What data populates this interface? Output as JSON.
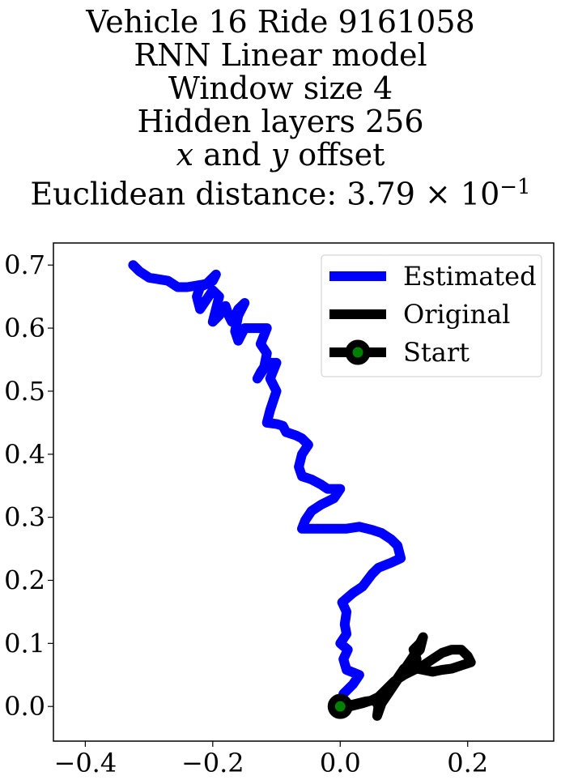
{
  "title": {
    "line1": "Vehicle 16 Ride 9161058",
    "line2": "RNN Linear model",
    "line3": "Window size 4",
    "line4": "Hidden layers 256",
    "line5_x": "x",
    "line5_and": " and ",
    "line5_y": "y",
    "line5_rest": " offset",
    "line6_prefix": "Euclidean distance: 3.79",
    "line6_times": " × 10",
    "line6_exp": "−1"
  },
  "chart_data": {
    "type": "line",
    "xlim": [
      -0.45,
      0.335
    ],
    "ylim": [
      -0.055,
      0.735
    ],
    "x_ticks": [
      {
        "value": -0.4,
        "label": "−0.4"
      },
      {
        "value": -0.2,
        "label": "−0.2"
      },
      {
        "value": 0.0,
        "label": "0.0"
      },
      {
        "value": 0.2,
        "label": "0.2"
      }
    ],
    "y_ticks": [
      {
        "value": 0.0,
        "label": "0.0"
      },
      {
        "value": 0.1,
        "label": "0.1"
      },
      {
        "value": 0.2,
        "label": "0.2"
      },
      {
        "value": 0.3,
        "label": "0.3"
      },
      {
        "value": 0.4,
        "label": "0.4"
      },
      {
        "value": 0.5,
        "label": "0.5"
      },
      {
        "value": 0.6,
        "label": "0.6"
      },
      {
        "value": 0.7,
        "label": "0.7"
      }
    ],
    "grid": false,
    "legend_position": "top-right",
    "series": [
      {
        "name": "Estimated",
        "color": "#0000ff",
        "points": [
          [
            0.0,
            0.0
          ],
          [
            0.005,
            0.02
          ],
          [
            0.02,
            0.035
          ],
          [
            0.03,
            0.05
          ],
          [
            0.01,
            0.058
          ],
          [
            0.005,
            0.075
          ],
          [
            0.012,
            0.09
          ],
          [
            0.0,
            0.1
          ],
          [
            0.01,
            0.115
          ],
          [
            0.007,
            0.13
          ],
          [
            0.01,
            0.15
          ],
          [
            0.003,
            0.165
          ],
          [
            0.02,
            0.18
          ],
          [
            0.035,
            0.19
          ],
          [
            0.05,
            0.21
          ],
          [
            0.06,
            0.22
          ],
          [
            0.08,
            0.228
          ],
          [
            0.095,
            0.235
          ],
          [
            0.09,
            0.255
          ],
          [
            0.08,
            0.265
          ],
          [
            0.065,
            0.275
          ],
          [
            0.05,
            0.28
          ],
          [
            0.03,
            0.285
          ],
          [
            0.01,
            0.282
          ],
          [
            -0.02,
            0.282
          ],
          [
            -0.06,
            0.282
          ],
          [
            -0.055,
            0.295
          ],
          [
            -0.045,
            0.31
          ],
          [
            -0.03,
            0.32
          ],
          [
            -0.01,
            0.33
          ],
          [
            0.0,
            0.345
          ],
          [
            -0.02,
            0.345
          ],
          [
            -0.03,
            0.352
          ],
          [
            -0.045,
            0.36
          ],
          [
            -0.06,
            0.365
          ],
          [
            -0.065,
            0.38
          ],
          [
            -0.06,
            0.4
          ],
          [
            -0.05,
            0.415
          ],
          [
            -0.06,
            0.425
          ],
          [
            -0.07,
            0.43
          ],
          [
            -0.085,
            0.435
          ],
          [
            -0.09,
            0.445
          ],
          [
            -0.1,
            0.448
          ],
          [
            -0.115,
            0.45
          ],
          [
            -0.11,
            0.47
          ],
          [
            -0.1,
            0.5
          ],
          [
            -0.11,
            0.52
          ],
          [
            -0.1,
            0.545
          ],
          [
            -0.115,
            0.545
          ],
          [
            -0.125,
            0.53
          ],
          [
            -0.13,
            0.52
          ],
          [
            -0.12,
            0.535
          ],
          [
            -0.115,
            0.56
          ],
          [
            -0.125,
            0.575
          ],
          [
            -0.115,
            0.6
          ],
          [
            -0.13,
            0.6
          ],
          [
            -0.15,
            0.6
          ],
          [
            -0.16,
            0.58
          ],
          [
            -0.165,
            0.595
          ],
          [
            -0.16,
            0.62
          ],
          [
            -0.15,
            0.64
          ],
          [
            -0.16,
            0.63
          ],
          [
            -0.17,
            0.61
          ],
          [
            -0.175,
            0.62
          ],
          [
            -0.18,
            0.635
          ],
          [
            -0.19,
            0.62
          ],
          [
            -0.2,
            0.61
          ],
          [
            -0.19,
            0.65
          ],
          [
            -0.2,
            0.66
          ],
          [
            -0.21,
            0.645
          ],
          [
            -0.22,
            0.63
          ],
          [
            -0.225,
            0.65
          ],
          [
            -0.22,
            0.665
          ],
          [
            -0.2,
            0.675
          ],
          [
            -0.195,
            0.685
          ],
          [
            -0.21,
            0.67
          ],
          [
            -0.24,
            0.665
          ],
          [
            -0.255,
            0.665
          ],
          [
            -0.27,
            0.675
          ],
          [
            -0.3,
            0.68
          ],
          [
            -0.315,
            0.69
          ],
          [
            -0.325,
            0.7
          ]
        ]
      },
      {
        "name": "Original",
        "color": "#000000",
        "points": [
          [
            0.0,
            0.0
          ],
          [
            0.02,
            0.003
          ],
          [
            0.04,
            0.008
          ],
          [
            0.055,
            0.01
          ],
          [
            0.06,
            0.0
          ],
          [
            0.058,
            -0.015
          ],
          [
            0.065,
            0.005
          ],
          [
            0.075,
            0.02
          ],
          [
            0.085,
            0.035
          ],
          [
            0.095,
            0.05
          ],
          [
            0.105,
            0.065
          ],
          [
            0.115,
            0.08
          ],
          [
            0.125,
            0.09
          ],
          [
            0.13,
            0.11
          ],
          [
            0.125,
            0.1
          ],
          [
            0.115,
            0.09
          ],
          [
            0.12,
            0.075
          ],
          [
            0.1,
            0.06
          ],
          [
            0.09,
            0.045
          ],
          [
            0.11,
            0.055
          ],
          [
            0.13,
            0.065
          ],
          [
            0.145,
            0.075
          ],
          [
            0.16,
            0.085
          ],
          [
            0.175,
            0.09
          ],
          [
            0.19,
            0.09
          ],
          [
            0.2,
            0.08
          ],
          [
            0.205,
            0.07
          ],
          [
            0.19,
            0.065
          ],
          [
            0.175,
            0.06
          ],
          [
            0.16,
            0.058
          ],
          [
            0.145,
            0.055
          ],
          [
            0.13,
            0.058
          ],
          [
            0.12,
            0.06
          ],
          [
            0.1,
            0.05
          ],
          [
            0.085,
            0.04
          ],
          [
            0.07,
            0.025
          ],
          [
            0.06,
            0.015
          ],
          [
            0.05,
            0.01
          ],
          [
            0.035,
            0.005
          ],
          [
            0.015,
            0.0
          ],
          [
            0.0,
            0.0
          ]
        ]
      }
    ],
    "start_point": {
      "name": "Start",
      "x": 0.0,
      "y": 0.0
    },
    "start_marker_edge_color": "#000000",
    "start_marker_face_color": "#008000",
    "legend": {
      "entries": [
        "Estimated",
        "Original",
        "Start"
      ]
    }
  }
}
